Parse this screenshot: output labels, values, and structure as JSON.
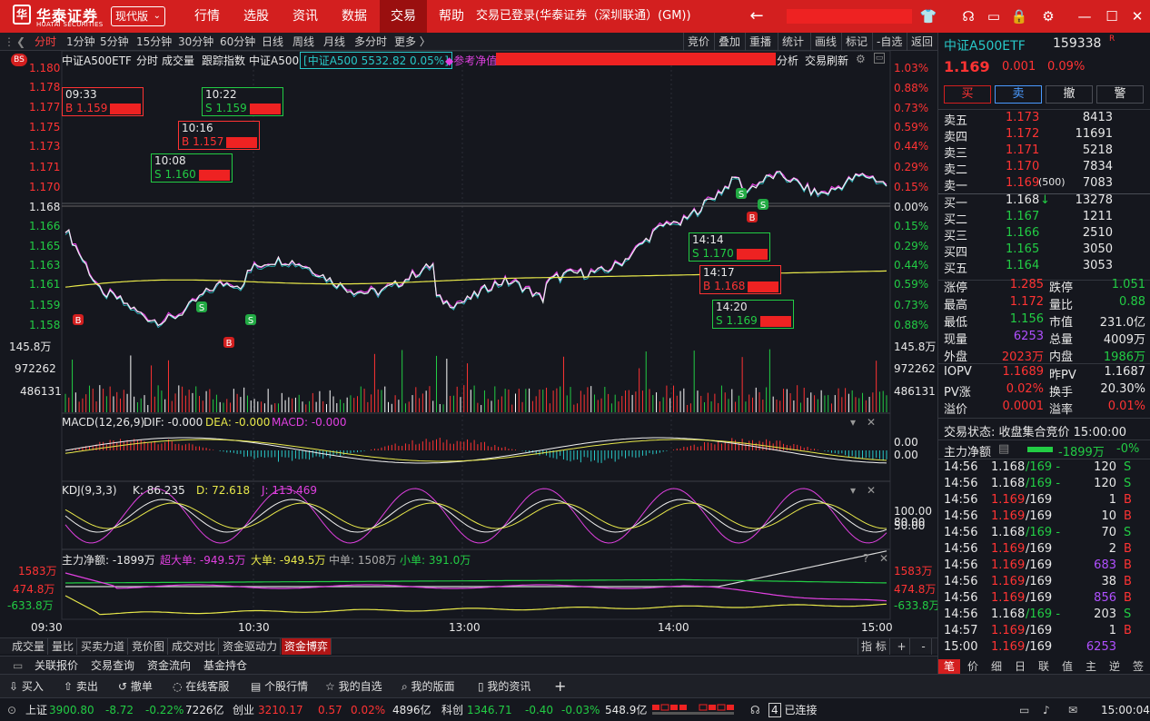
{
  "header": {
    "logo_text": "华泰证券",
    "logo_sub": "HUATAI SECURITIES",
    "edition": "现代版",
    "menu": [
      "行情",
      "选股",
      "资讯",
      "数据",
      "交易",
      "帮助"
    ],
    "active_menu": "交易",
    "status": "交易已登录(华泰证券（深圳联通）(GM))"
  },
  "toolbar": {
    "periods": [
      "分时",
      "1分钟",
      "5分钟",
      "15分钟",
      "30分钟",
      "60分钟",
      "日线",
      "周线",
      "月线",
      "多分时",
      "更多 〉"
    ],
    "active_period": "分时",
    "right": [
      "竞价",
      "叠加",
      "重播",
      "统计",
      "画线",
      "标记",
      "-自选",
      "返回"
    ]
  },
  "chart_header": {
    "name": "中证A500ETF",
    "items": [
      "分时",
      "成交量",
      "跟踪指数",
      "中证A500"
    ],
    "index_box": "中证A500 5532.82 0.05%",
    "ref_nav": "参考净值",
    "right_items": [
      "分析",
      "交易刷新"
    ],
    "bs_badge": "BS"
  },
  "price_axis": {
    "left_labels": [
      "1.180",
      "1.178",
      "1.177",
      "1.175",
      "1.173",
      "1.171",
      "1.170",
      "1.168",
      "1.166",
      "1.165",
      "1.163",
      "1.161",
      "1.159",
      "1.158"
    ],
    "right_labels": [
      "1.03%",
      "0.88%",
      "0.73%",
      "0.59%",
      "0.44%",
      "0.29%",
      "0.15%",
      "0.00%",
      "0.15%",
      "0.29%",
      "0.44%",
      "0.59%",
      "0.73%",
      "0.88%"
    ]
  },
  "volume_axis": {
    "labels": [
      "145.8万",
      "972262",
      "486131"
    ]
  },
  "time_axis": [
    "09:30",
    "10:30",
    "13:00",
    "14:00",
    "15:00"
  ],
  "trades": [
    {
      "time": "09:33",
      "side": "B",
      "price": "1.159"
    },
    {
      "time": "10:22",
      "side": "S",
      "price": "1.159"
    },
    {
      "time": "10:16",
      "side": "B",
      "price": "1.157"
    },
    {
      "time": "10:08",
      "side": "S",
      "price": "1.160"
    },
    {
      "time": "14:14",
      "side": "S",
      "price": "1.170"
    },
    {
      "time": "14:17",
      "side": "B",
      "price": "1.168"
    },
    {
      "time": "14:20",
      "side": "S",
      "price": "1.169"
    }
  ],
  "macd": {
    "title": "MACD(12,26,9)",
    "dif": "DIF: -0.000",
    "dea": "DEA: -0.000",
    "macd": "MACD: -0.000",
    "right1": "0.00",
    "right2": "0.00"
  },
  "kdj": {
    "title": "KDJ(9,3,3)",
    "k": "K: 86.235",
    "d": "D: 72.618",
    "j": "J: 113.469",
    "r1": "100.00",
    "r2": "80.00",
    "r3": "50.00"
  },
  "fund": {
    "title": "主力净额: -1899万",
    "super": "超大单: -949.5万",
    "big": "大单: -949.5万",
    "mid": "中单: 1508万",
    "small": "小单: 391.0万",
    "axis": [
      "1583万",
      "474.8万",
      "-633.8万"
    ]
  },
  "bottom_tabs": [
    "成交量",
    "量比",
    "买卖力道",
    "竞价图",
    "成交对比",
    "资金驱动力",
    "资金博弈"
  ],
  "active_bottom_tab": "资金博弈",
  "bottom_right": [
    "指 标",
    "+",
    "-"
  ],
  "second_tabs": [
    "关联报价",
    "交易查询",
    "资金流向",
    "基金持仓"
  ],
  "action_bar": [
    "买入",
    "卖出",
    "撤单",
    "在线客服",
    "个股行情",
    "我的自选",
    "我的版面",
    "我的资讯",
    "+"
  ],
  "index_bar": {
    "sh_label": "上证",
    "sh_val": "3900.80",
    "sh_chg": "-8.72",
    "sh_pct": "-0.22%",
    "sh_amt": "7226亿",
    "cy_label": "创业",
    "cy_val": "3210.17",
    "cy_chg": "0.57",
    "cy_pct": "0.02%",
    "cy_amt": "4896亿",
    "kc_label": "科创",
    "kc_val": "1346.71",
    "kc_chg": "-0.40",
    "kc_pct": "-0.03%",
    "kc_amt": "548.9亿",
    "connect": "已连接",
    "connect_num": "4",
    "clock": "15:00:04"
  },
  "quote": {
    "name": "中证A500ETF",
    "code": "159338",
    "tag": "R",
    "price": "1.169",
    "change": "0.001",
    "pct": "0.09%",
    "buttons": [
      "买",
      "卖",
      "撤",
      "警"
    ],
    "asks": [
      {
        "label": "卖五",
        "price": "1.173",
        "vol": "8413"
      },
      {
        "label": "卖四",
        "price": "1.172",
        "vol": "11691"
      },
      {
        "label": "卖三",
        "price": "1.171",
        "vol": "5218"
      },
      {
        "label": "卖二",
        "price": "1.170",
        "vol": "7834"
      },
      {
        "label": "卖一",
        "price": "1.169",
        "vol": "7083",
        "extra": "(500)"
      }
    ],
    "bids": [
      {
        "label": "买一",
        "price": "1.168",
        "vol": "13278",
        "arrow": "↓"
      },
      {
        "label": "买二",
        "price": "1.167",
        "vol": "1211"
      },
      {
        "label": "买三",
        "price": "1.166",
        "vol": "2510"
      },
      {
        "label": "买四",
        "price": "1.165",
        "vol": "3050"
      },
      {
        "label": "买五",
        "price": "1.164",
        "vol": "3053"
      }
    ],
    "stats": [
      {
        "l1": "涨停",
        "v1": "1.285",
        "c1": "red",
        "l2": "跌停",
        "v2": "1.051",
        "c2": "green"
      },
      {
        "l1": "最高",
        "v1": "1.172",
        "c1": "red",
        "l2": "量比",
        "v2": "0.88",
        "c2": "green"
      },
      {
        "l1": "最低",
        "v1": "1.156",
        "c1": "green",
        "l2": "市值",
        "v2": "231.0亿",
        "c2": "white"
      },
      {
        "l1": "现量",
        "v1": "6253",
        "c1": "purple",
        "l2": "总量",
        "v2": "4009万",
        "c2": "white"
      },
      {
        "l1": "外盘",
        "v1": "2023万",
        "c1": "red",
        "l2": "内盘",
        "v2": "1986万",
        "c2": "green"
      }
    ],
    "stats2": [
      {
        "l1": "IOPV",
        "v1": "1.1689",
        "c1": "red",
        "l2": "昨PV",
        "v2": "1.1687",
        "c2": "white"
      },
      {
        "l1": "PV涨",
        "v1": "0.02%",
        "c1": "red",
        "l2": "换手",
        "v2": "20.30%",
        "c2": "white"
      },
      {
        "l1": "溢价",
        "v1": "0.0001",
        "c1": "red",
        "l2": "溢率",
        "v2": "0.01%",
        "c2": "red"
      }
    ],
    "trade_status": "交易状态: 收盘集合竞价 15:00:00",
    "main_net_label": "主力净额",
    "main_net_val": "-1899万",
    "main_net_pct": "-0%",
    "ticks": [
      {
        "t": "14:56",
        "p": "1.168",
        "c": "white",
        "pv": "/169 -",
        "pc": "green",
        "v": "120",
        "s": "S"
      },
      {
        "t": "14:56",
        "p": "1.168",
        "c": "white",
        "pv": "/169 -",
        "pc": "green",
        "v": "120",
        "s": "S"
      },
      {
        "t": "14:56",
        "p": "1.169",
        "c": "red",
        "pv": "/169",
        "pc": "white",
        "v": "1",
        "s": "B"
      },
      {
        "t": "14:56",
        "p": "1.169",
        "c": "red",
        "pv": "/169",
        "pc": "white",
        "v": "10",
        "s": "B"
      },
      {
        "t": "14:56",
        "p": "1.168",
        "c": "white",
        "pv": "/169 -",
        "pc": "green",
        "v": "70",
        "s": "S"
      },
      {
        "t": "14:56",
        "p": "1.169",
        "c": "red",
        "pv": "/169",
        "pc": "white",
        "v": "2",
        "s": "B"
      },
      {
        "t": "14:56",
        "p": "1.169",
        "c": "red",
        "pv": "/169",
        "pc": "white",
        "v": "683",
        "s": "B",
        "vc": "purple"
      },
      {
        "t": "14:56",
        "p": "1.169",
        "c": "red",
        "pv": "/169",
        "pc": "white",
        "v": "38",
        "s": "B"
      },
      {
        "t": "14:56",
        "p": "1.169",
        "c": "red",
        "pv": "/169",
        "pc": "white",
        "v": "856",
        "s": "B",
        "vc": "purple"
      },
      {
        "t": "14:56",
        "p": "1.168",
        "c": "white",
        "pv": "/169 -",
        "pc": "green",
        "v": "203",
        "s": "S"
      },
      {
        "t": "14:57",
        "p": "1.169",
        "c": "red",
        "pv": "/169",
        "pc": "white",
        "v": "1",
        "s": "B"
      },
      {
        "t": "15:00",
        "p": "1.169",
        "c": "red",
        "pv": "/169",
        "pc": "white",
        "v": "6253",
        "s": "",
        "vc": "purple"
      }
    ],
    "bottom_tabs": [
      "笔",
      "价",
      "细",
      "日",
      "联",
      "值",
      "主",
      "逆",
      "签"
    ]
  },
  "colors": {
    "up": "#ff3333",
    "down": "#22cc44",
    "accent": "#d31f1f",
    "bg": "#15171e"
  }
}
